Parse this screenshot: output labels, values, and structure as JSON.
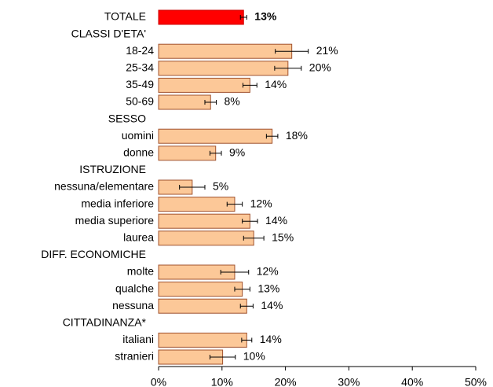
{
  "chart_data": {
    "type": "hbar",
    "categories": [
      "TOTALE",
      "CLASSI D'ETA'",
      "18-24",
      "25-34",
      "35-49",
      "50-69",
      "SESSO",
      "uomini",
      "donne",
      "ISTRUZIONE",
      "nessuna/elementare",
      "media inferiore",
      "media superiore",
      "laurea",
      "DIFF. ECONOMICHE",
      "molte",
      "qualche",
      "nessuna",
      "CITTADINANZA*",
      "italiani",
      "stranieri"
    ],
    "values": [
      13.4,
      null,
      21,
      20.4,
      14.4,
      8.2,
      null,
      17.9,
      9,
      null,
      5.3,
      12,
      14.4,
      15,
      null,
      12,
      13.2,
      13.9,
      null,
      13.9,
      10.1
    ],
    "errors": [
      0.5,
      null,
      2.6,
      2.1,
      1.1,
      0.9,
      null,
      0.9,
      0.9,
      null,
      2,
      1.2,
      1.2,
      1.6,
      null,
      2.2,
      1.2,
      1,
      null,
      0.8,
      2
    ],
    "value_labels": [
      "13%",
      null,
      "21%",
      "20%",
      "14%",
      "8%",
      null,
      "18%",
      "9%",
      null,
      "5%",
      "12%",
      "14%",
      "15%",
      null,
      "12%",
      "13%",
      "14%",
      null,
      "14%",
      "10%"
    ],
    "colors": [
      "#ff0000",
      null,
      "#fcc898",
      "#fcc898",
      "#fcc898",
      "#fcc898",
      null,
      "#fcc898",
      "#fcc898",
      null,
      "#fcc898",
      "#fcc898",
      "#fcc898",
      "#fcc898",
      null,
      "#fcc898",
      "#fcc898",
      "#fcc898",
      null,
      "#fcc898",
      "#fcc898"
    ],
    "xlim": [
      0,
      50
    ],
    "xticks": [
      {
        "value": 0,
        "label": "0%"
      },
      {
        "value": 10,
        "label": "10%"
      },
      {
        "value": 20,
        "label": "20%"
      },
      {
        "value": 30,
        "label": "30%"
      },
      {
        "value": 40,
        "label": "40%"
      },
      {
        "value": 50,
        "label": "50%"
      }
    ]
  }
}
